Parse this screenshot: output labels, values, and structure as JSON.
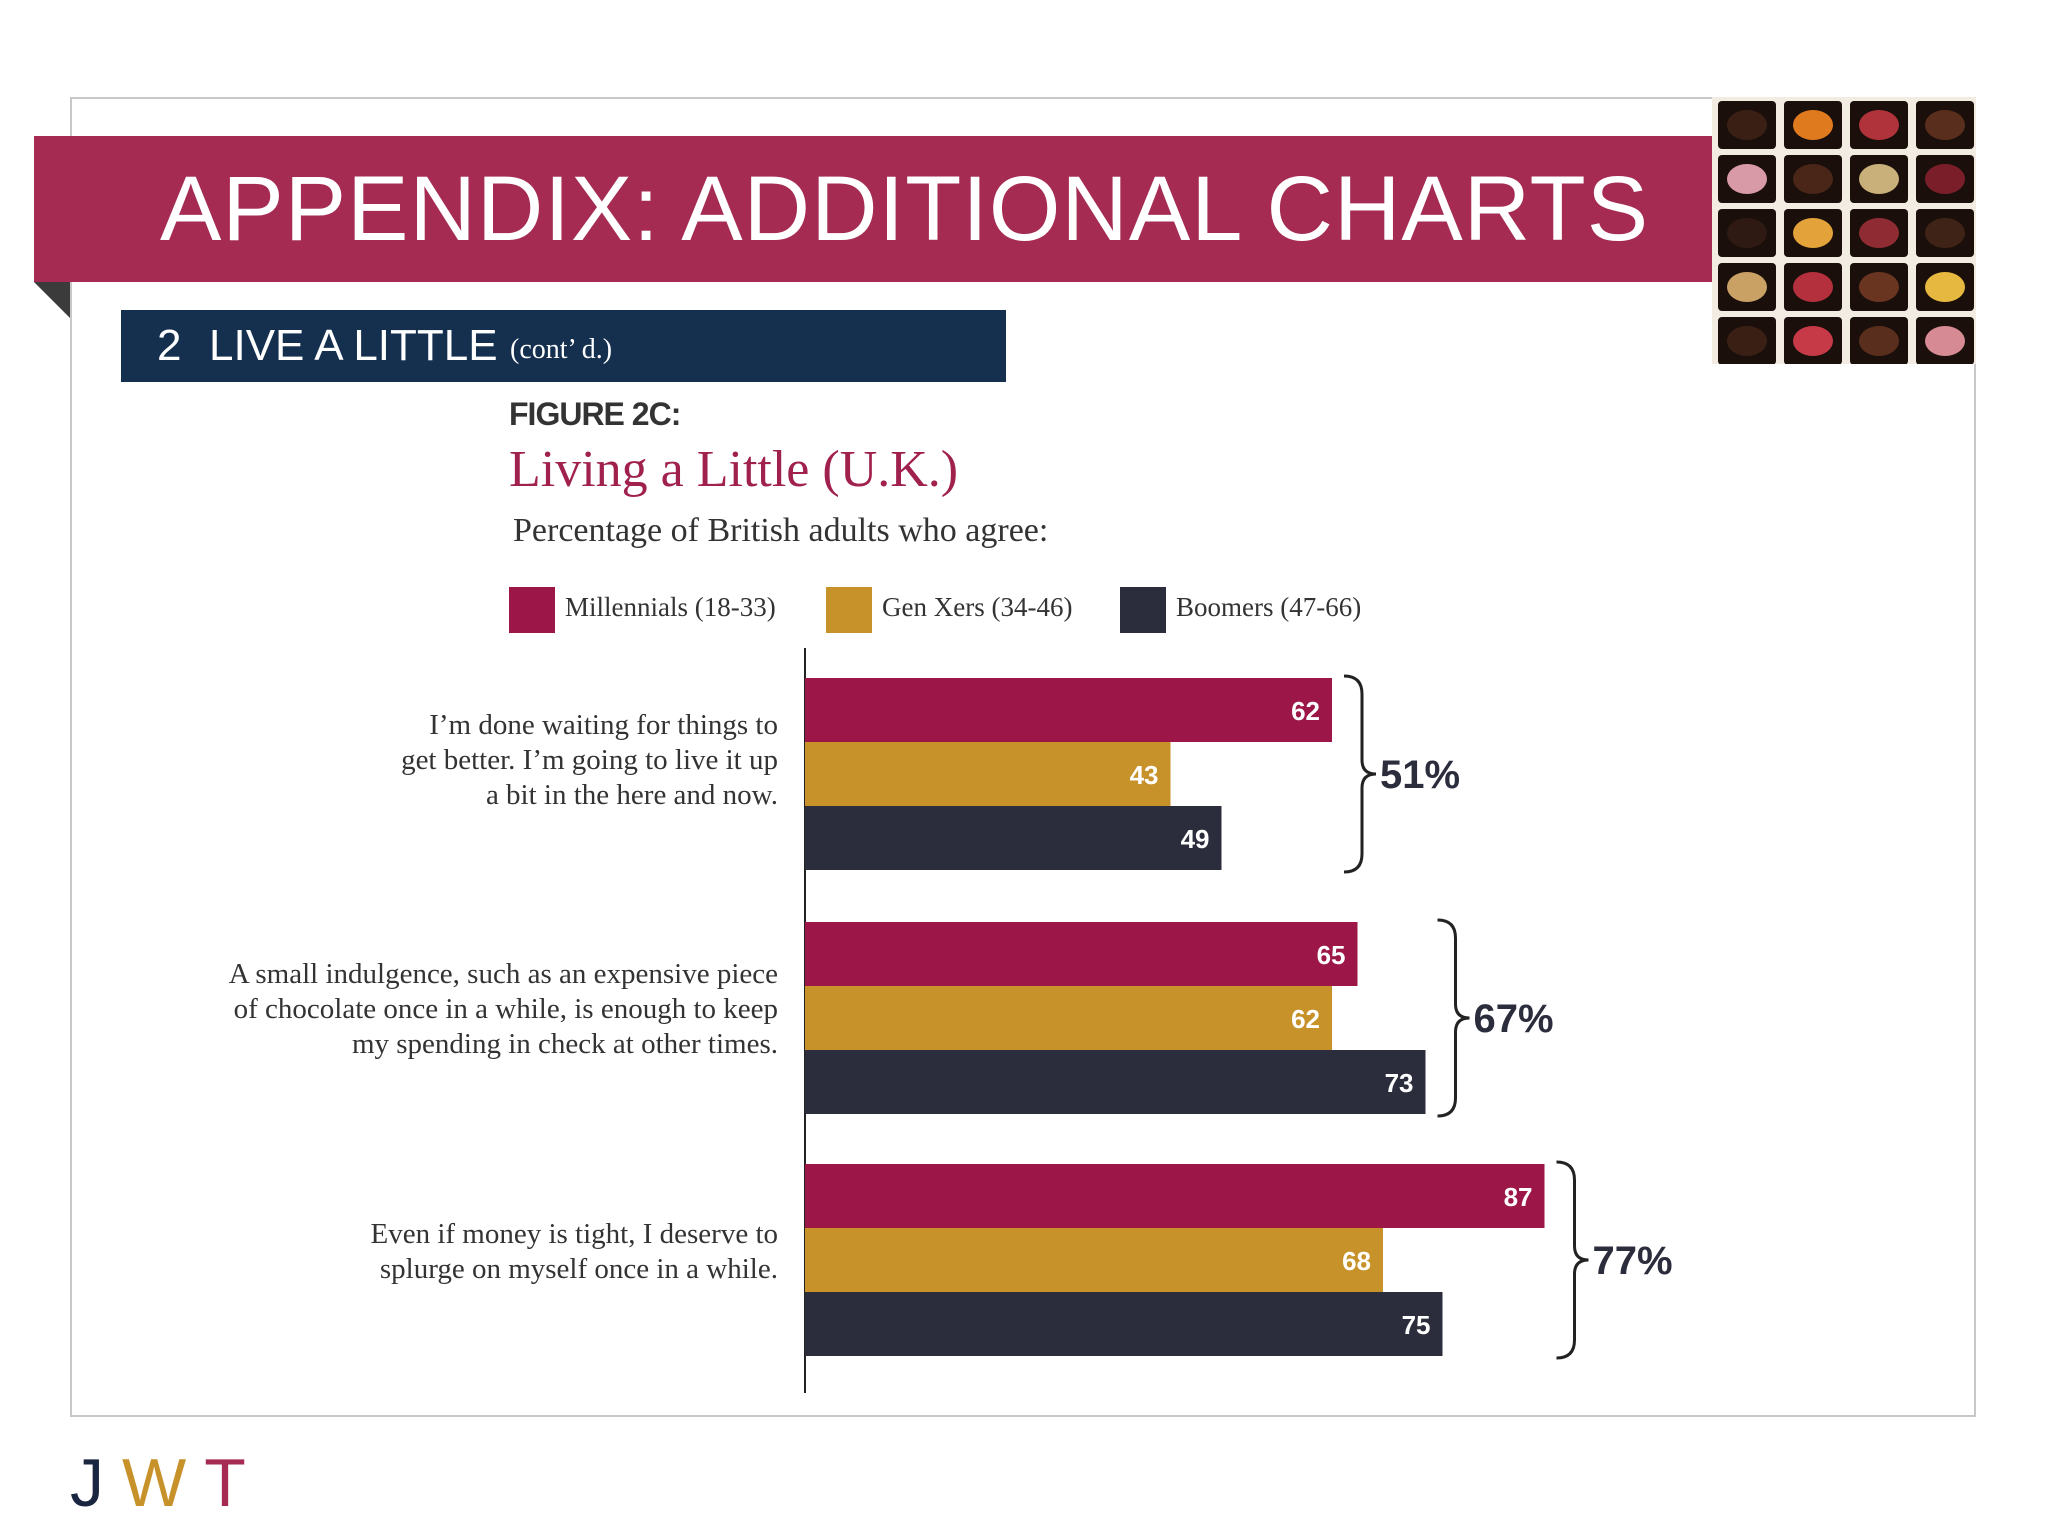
{
  "slide": {
    "title": "APPENDIX: ADDITIONAL CHARTS",
    "section_number": "2",
    "section_title": "LIVE A LITTLE",
    "section_sub": "(cont’ d.)",
    "logo": {
      "letters": [
        "J",
        "W",
        "T"
      ]
    }
  },
  "colors": {
    "banner": "#a52b52",
    "section_bar": "#15304f",
    "millennials": "#9c1747",
    "genx": "#c8922a",
    "boomers": "#2b2d3d"
  },
  "photo": {
    "icon": "chocolate-box-photo"
  },
  "chart_data": {
    "type": "bar",
    "orientation": "horizontal",
    "figure_label": "FIGURE 2C:",
    "title": "Living a Little (U.K.)",
    "subtitle": "Percentage of British adults who agree:",
    "categories": [
      "I’m done waiting for things to get better. I’m going to live it up a bit in the here and now.",
      "A small indulgence, such as an expensive piece of chocolate once in a while, is enough to keep my spending in check at other times.",
      "Even if money is tight, I deserve to splurge on myself once in a while."
    ],
    "category_lines": [
      [
        "I’m done waiting for things to",
        "get better. I’m going to live it up",
        "a bit in the here and now."
      ],
      [
        "A small indulgence, such as an expensive piece",
        "of chocolate once in a while, is enough to keep",
        "my spending in check at other times."
      ],
      [
        "Even if money is tight, I deserve to",
        "splurge on myself once in a while."
      ]
    ],
    "series": [
      {
        "name": "Millennials (18-33)",
        "values": [
          62,
          65,
          87
        ]
      },
      {
        "name": "Gen Xers (34-46)",
        "values": [
          43,
          62,
          68
        ]
      },
      {
        "name": "Boomers (47-66)",
        "values": [
          49,
          73,
          75
        ]
      }
    ],
    "totals": [
      "51%",
      "67%",
      "77%"
    ],
    "xlim": [
      0,
      100
    ],
    "grid": false,
    "legend_position": "top"
  }
}
